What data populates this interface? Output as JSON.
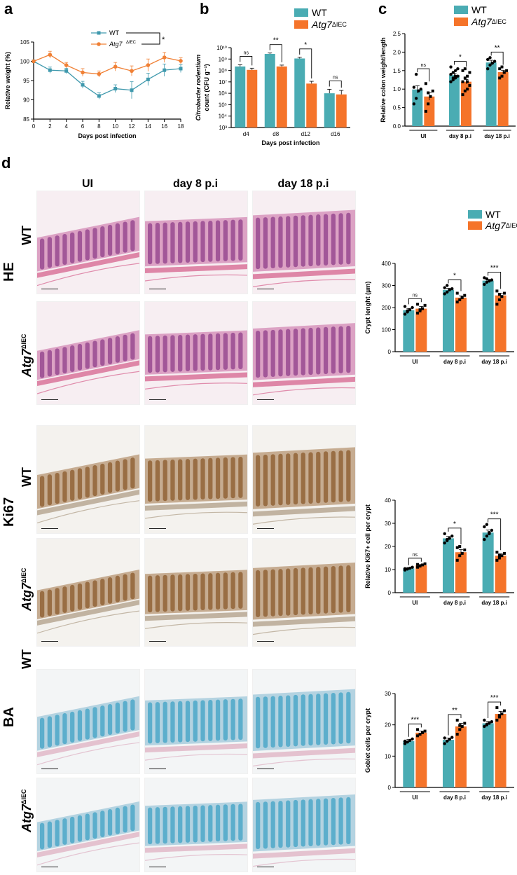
{
  "figure": {
    "panel_labels": {
      "a": "a",
      "b": "b",
      "c": "c",
      "d": "d"
    },
    "colors": {
      "wt": "#4aacb3",
      "atg7": "#f5742a",
      "wt_line": "#3f99ad",
      "atg7_line": "#f08035"
    },
    "legend": {
      "wt": "WT",
      "atg7_name": "Atg7",
      "atg7_sup": "ΔIEC"
    },
    "stain_rows": {
      "he": "HE",
      "ki67": "Ki67",
      "ba": "BA"
    },
    "genotypes": {
      "wt": "WT",
      "atg7_name": "Atg7",
      "atg7_sup": "ΔIEC"
    },
    "timepoints": [
      "UI",
      "day 8 p.i",
      "day 18 p.i"
    ],
    "stain_palette": [
      "he-pink-purple",
      "ki67-brown",
      "alcian-blue"
    ],
    "stat_marks": {
      "ns": "ns",
      "one": "*",
      "two": "**",
      "three": "***"
    }
  },
  "chart_data": [
    {
      "id": "a",
      "type": "line",
      "x": [
        0,
        2,
        4,
        6,
        8,
        10,
        12,
        14,
        16,
        18
      ],
      "xlabel": "Days post infection",
      "ylabel": "Relative weight (%)",
      "xticks": [
        "0",
        "2",
        "4",
        "6",
        "8",
        "10",
        "12",
        "14",
        "16",
        "18"
      ],
      "yticks": [
        "85",
        "90",
        "95",
        "100",
        "105"
      ],
      "xlim": [
        0,
        18
      ],
      "ylim": [
        85,
        105
      ],
      "series": [
        {
          "name": "WT",
          "values": [
            100,
            97.7,
            97.5,
            93.9,
            91.0,
            92.9,
            92.5,
            95.3,
            97.7,
            98.1
          ],
          "errors": [
            0.3,
            0.8,
            0.7,
            0.9,
            0.8,
            1.0,
            2.2,
            1.6,
            1.6,
            1.0
          ]
        },
        {
          "name": "Atg7ΔIEC",
          "values": [
            100,
            101.7,
            99.0,
            97.1,
            96.7,
            98.6,
            97.5,
            99.0,
            101.0,
            100.1
          ],
          "errors": [
            0.3,
            0.9,
            0.7,
            1.0,
            0.8,
            1.1,
            1.3,
            1.6,
            1.3,
            0.8
          ]
        }
      ],
      "annotation": "*"
    },
    {
      "id": "b",
      "type": "bar",
      "categories": [
        "d4",
        "d8",
        "d12",
        "d16"
      ],
      "xlabel": "Days post infection",
      "ylabel_italic": "Citrobacter rodentium",
      "ylabel": "count (CFU g⁻¹)",
      "scale": "log",
      "ylim_exp": [
        3,
        10
      ],
      "ytick_labels": [
        "10³",
        "10⁴",
        "10⁵",
        "10⁶",
        "10⁷",
        "10⁸",
        "10⁹",
        "10¹⁰"
      ],
      "series": [
        {
          "name": "WT",
          "log_values": [
            8.35,
            9.45,
            9.05,
            6.0
          ],
          "log_errors": [
            0.15,
            0.08,
            0.1,
            0.35
          ]
        },
        {
          "name": "Atg7ΔIEC",
          "log_values": [
            8.05,
            8.35,
            6.85,
            5.9
          ],
          "log_errors": [
            0.15,
            0.12,
            0.2,
            0.35
          ]
        }
      ],
      "significance": [
        "ns",
        "**",
        "*",
        "ns"
      ]
    },
    {
      "id": "c",
      "type": "bar",
      "categories": [
        "UI",
        "day 8 p.i",
        "day 18 p.i"
      ],
      "ylabel": "Relative colon weight/length",
      "yticks": [
        "0.0",
        "0.5",
        "1.0",
        "1.5",
        "2.0",
        "2.5"
      ],
      "ylim": [
        0,
        2.5
      ],
      "series": [
        {
          "name": "WT",
          "values": [
            0.99,
            1.38,
            1.72
          ],
          "errors": [
            0.1,
            0.05,
            0.06
          ],
          "points": [
            [
              0.6,
              0.75,
              0.95,
              1.0,
              1.05,
              1.4
            ],
            [
              1.2,
              1.25,
              1.3,
              1.35,
              1.4,
              1.45,
              1.5,
              1.55,
              1.6,
              1.3,
              1.35
            ],
            [
              1.55,
              1.65,
              1.7,
              1.75,
              1.8,
              1.85
            ]
          ]
        },
        {
          "name": "Atg7ΔIEC",
          "values": [
            0.8,
            1.2,
            1.46
          ],
          "errors": [
            0.1,
            0.06,
            0.05
          ],
          "points": [
            [
              0.4,
              0.6,
              0.8,
              0.95,
              1.15,
              0.9
            ],
            [
              0.85,
              0.95,
              1.0,
              1.1,
              1.2,
              1.3,
              1.35,
              1.45,
              1.5,
              1.55,
              1.2
            ],
            [
              1.3,
              1.35,
              1.45,
              1.5,
              1.55,
              1.6
            ]
          ]
        }
      ],
      "significance": [
        "ns",
        "*",
        "**"
      ]
    },
    {
      "id": "d-he",
      "type": "bar",
      "categories": [
        "UI",
        "day 8 p.i",
        "day 18 p.i"
      ],
      "ylabel": "Crypt lenght (µm)",
      "yticks": [
        "0",
        "100",
        "200",
        "300",
        "400"
      ],
      "ylim": [
        0,
        400
      ],
      "series": [
        {
          "name": "WT",
          "values": [
            188,
            280,
            322
          ],
          "errors": [
            8,
            7,
            6
          ],
          "points": [
            [
              170,
              180,
              190,
              200,
              205,
              185
            ],
            [
              262,
              270,
              280,
              285,
              290,
              300
            ],
            [
              305,
              315,
              320,
              325,
              335,
              330
            ]
          ]
        },
        {
          "name": "Atg7ΔIEC",
          "values": [
            195,
            245,
            255
          ],
          "errors": [
            10,
            8,
            10
          ],
          "points": [
            [
              175,
              185,
              195,
              210,
              215,
              190
            ],
            [
              225,
              235,
              245,
              255,
              265
            ],
            [
              215,
              235,
              250,
              265,
              275,
              260
            ]
          ]
        }
      ],
      "significance": [
        "ns",
        "*",
        "***"
      ]
    },
    {
      "id": "d-ki67",
      "type": "bar",
      "categories": [
        "UI",
        "day 8 p.i",
        "day 18 p.i"
      ],
      "ylabel": "Relative Ki67+ cell per crypt",
      "yticks": [
        "0",
        "10",
        "20",
        "30",
        "40"
      ],
      "ylim": [
        0,
        40
      ],
      "series": [
        {
          "name": "WT",
          "values": [
            10.5,
            23.5,
            26
          ],
          "errors": [
            0.4,
            0.8,
            1.1
          ],
          "points": [
            [
              9.8,
              10.2,
              10.6,
              11.0,
              10.4
            ],
            [
              21.5,
              22.5,
              23.5,
              24.5,
              25.5,
              23.0
            ],
            [
              23,
              24.5,
              26,
              27,
              28.5,
              29.5,
              25.5
            ]
          ]
        },
        {
          "name": "Atg7ΔIEC",
          "values": [
            11.8,
            17.5,
            16
          ],
          "errors": [
            0.4,
            1.2,
            0.8
          ],
          "points": [
            [
              11.0,
              11.5,
              12.0,
              12.5,
              12.2
            ],
            [
              14,
              16,
              17,
              18.5,
              19.5,
              20
            ],
            [
              14,
              15,
              16,
              17,
              17.5,
              16.2
            ]
          ]
        }
      ],
      "significance": [
        "ns",
        "*",
        "***"
      ]
    },
    {
      "id": "d-ba",
      "type": "bar",
      "categories": [
        "UI",
        "day 8 p.i",
        "day 18 p.i"
      ],
      "ylabel": "Goblet cells per crypt",
      "yticks": [
        "0",
        "10",
        "20",
        "30"
      ],
      "ylim": [
        0,
        30
      ],
      "series": [
        {
          "name": "WT",
          "values": [
            14.8,
            15.2,
            20.5
          ],
          "errors": [
            0.5,
            0.6,
            0.6
          ],
          "points": [
            [
              14.0,
              14.5,
              15.0,
              15.5,
              14.8
            ],
            [
              14.0,
              14.8,
              15.4,
              16.0,
              15.8
            ],
            [
              19.5,
              20.0,
              20.5,
              21.0,
              21.5,
              20.2
            ]
          ]
        },
        {
          "name": "Atg7ΔIEC",
          "values": [
            17.5,
            19.5,
            23.5
          ],
          "errors": [
            0.5,
            1.0,
            0.8
          ],
          "points": [
            [
              16.5,
              17.0,
              17.5,
              18.0,
              18.5
            ],
            [
              17.0,
              18.5,
              19.5,
              20.5,
              21.5,
              19.8
            ],
            [
              21.5,
              22.5,
              23.5,
              24.5,
              25.5,
              23.0
            ]
          ]
        }
      ],
      "significance": [
        "***",
        "**",
        "***"
      ]
    }
  ]
}
